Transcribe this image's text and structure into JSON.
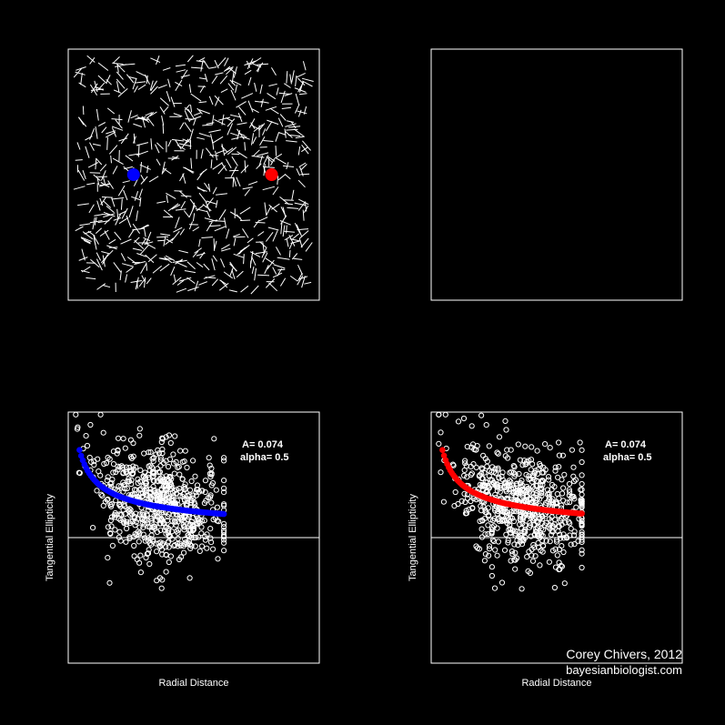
{
  "colors": {
    "background": "#000000",
    "foreground": "#ffffff",
    "halo_blue": "#0000ff",
    "halo_red": "#ff0000"
  },
  "credit": {
    "line1": "Corey Chivers, 2012",
    "line2": "bayesianbiologist.com"
  },
  "chart_data": [
    {
      "type": "scatter",
      "panel": "top-left",
      "title": "",
      "description_points": "galaxy ellipticity field (short white sticks) with two halos",
      "halos": [
        {
          "color": "#0000ff",
          "x": 0.26,
          "y": 0.5
        },
        {
          "color": "#ff0000",
          "x": 0.81,
          "y": 0.5
        }
      ],
      "stick_count": 700,
      "xlim": [
        0,
        1
      ],
      "ylim": [
        0,
        1
      ]
    },
    {
      "type": "scatter",
      "panel": "top-right",
      "title": "",
      "xlim": [
        0,
        1
      ],
      "ylim": [
        0,
        1
      ],
      "points": []
    },
    {
      "type": "scatter",
      "panel": "bottom-left",
      "xlabel": "Radial Distance",
      "ylabel": "Tangential Ellipticity",
      "annotation": {
        "line1": "A= 0.074",
        "line2": "alpha= 0.5"
      },
      "curve_color": "#0000ff",
      "A": 0.074,
      "alpha": 0.5,
      "x_range": [
        0.01,
        0.62
      ],
      "xlim": [
        0,
        1
      ],
      "ylim": [
        -0.5,
        0.5
      ],
      "hline": 0,
      "point_count": 700
    },
    {
      "type": "scatter",
      "panel": "bottom-right",
      "xlabel": "Radial Distance",
      "ylabel": "Tangential Ellipticity",
      "annotation": {
        "line1": "A= 0.074",
        "line2": "alpha= 0.5"
      },
      "curve_color": "#ff0000",
      "A": 0.074,
      "alpha": 0.5,
      "x_range": [
        0.01,
        0.6
      ],
      "xlim": [
        0,
        1
      ],
      "ylim": [
        -0.5,
        0.5
      ],
      "hline": 0,
      "point_count": 700
    }
  ]
}
